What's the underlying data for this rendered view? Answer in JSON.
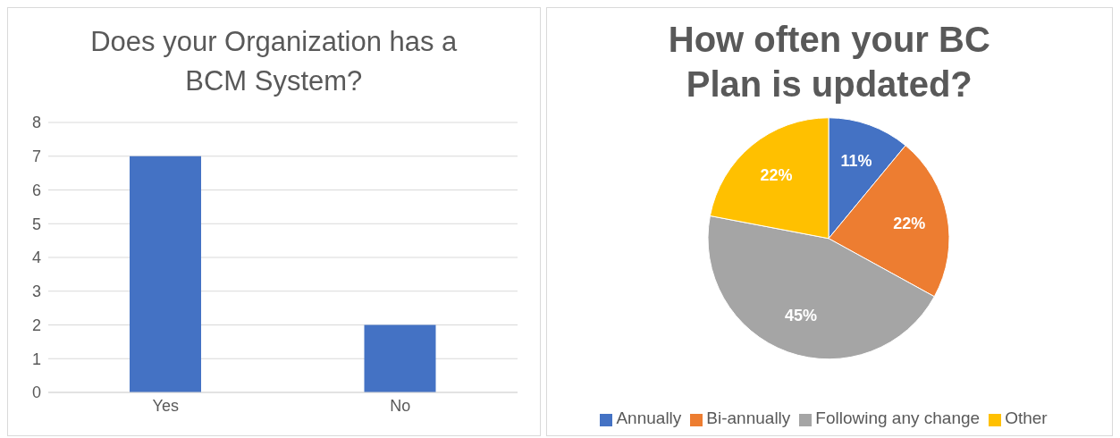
{
  "chart_data": [
    {
      "type": "bar",
      "title": "Does your Organization has a BCM System?",
      "categories": [
        "Yes",
        "No"
      ],
      "values": [
        7,
        2
      ],
      "color": "#4472c4",
      "ylim": [
        0,
        8
      ],
      "yticks": [
        0,
        1,
        2,
        3,
        4,
        5,
        6,
        7,
        8
      ],
      "grid": "y"
    },
    {
      "type": "pie",
      "title": "How often your BC Plan is updated?",
      "categories": [
        "Annually",
        "Bi-annually",
        "Following any change",
        "Other"
      ],
      "values": [
        11,
        22,
        45,
        22
      ],
      "colors": [
        "#4472c4",
        "#ed7d31",
        "#a5a5a5",
        "#ffc000"
      ],
      "value_labels": [
        "11%",
        "22%",
        "45%",
        "22%"
      ],
      "legend": "bottom"
    }
  ]
}
